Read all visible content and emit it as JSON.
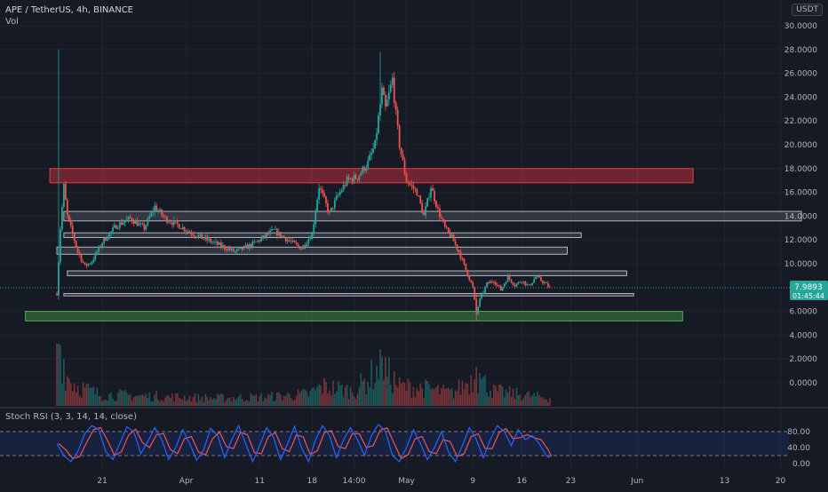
{
  "header": {
    "title": "APE / TetherUS, 4h, BINANCE",
    "volume_label": "Vol",
    "currency": "USDT"
  },
  "indicator": {
    "label": "Stoch RSI (3, 3, 14, 14, close)",
    "ticks": [
      "80.00",
      "40.00",
      "0.00"
    ]
  },
  "price_badge": {
    "value": "7.9893",
    "countdown": "01:45:44"
  },
  "price_axis": {
    "ticks": [
      {
        "v": 30,
        "label": "30.0000"
      },
      {
        "v": 28,
        "label": "28.0000"
      },
      {
        "v": 26,
        "label": "26.0000"
      },
      {
        "v": 24,
        "label": "24.0000"
      },
      {
        "v": 22,
        "label": "22.0000"
      },
      {
        "v": 20,
        "label": "20.0000"
      },
      {
        "v": 18,
        "label": "18.0000"
      },
      {
        "v": 16,
        "label": "16.0000"
      },
      {
        "v": 14,
        "label": "14.0000"
      },
      {
        "v": 12,
        "label": "12.0000"
      },
      {
        "v": 10,
        "label": "10.0000"
      },
      {
        "v": 6,
        "label": "6.0000"
      },
      {
        "v": 4,
        "label": "4.0000"
      },
      {
        "v": 2,
        "label": "2.0000"
      },
      {
        "v": 0,
        "label": "0.0000"
      }
    ]
  },
  "time_axis": {
    "ticks": [
      {
        "t": 13,
        "label": "21"
      },
      {
        "t": 37,
        "label": "Apr"
      },
      {
        "t": 58,
        "label": "11"
      },
      {
        "t": 73,
        "label": "18"
      },
      {
        "t": 85,
        "label": "14:00"
      },
      {
        "t": 100,
        "label": "May"
      },
      {
        "t": 119,
        "label": "9"
      },
      {
        "t": 133,
        "label": "16"
      },
      {
        "t": 147,
        "label": "23"
      },
      {
        "t": 166,
        "label": "Jun"
      },
      {
        "t": 191,
        "label": "13"
      },
      {
        "t": 207,
        "label": "20"
      }
    ]
  },
  "colors": {
    "up": "#26a69a",
    "down": "#ef5350",
    "stoch_k": "#2962ff",
    "stoch_d": "#ef5350",
    "red_zone": "#f23645",
    "green_zone": "#4caf50",
    "gray_zone": "#b2b5be"
  },
  "chart_data": {
    "type": "candlestick",
    "symbol": "APE / TetherUS",
    "interval": "4h",
    "exchange": "BINANCE",
    "y_range": [
      0,
      30
    ],
    "last_price": 7.9893,
    "zones": [
      {
        "kind": "resistance",
        "color": "red",
        "t1": -2,
        "t2": 182,
        "top": 18.0,
        "bottom": 16.8
      },
      {
        "kind": "level",
        "color": "gray",
        "t1": 2,
        "t2": 213,
        "top": 14.4,
        "bottom": 13.6
      },
      {
        "kind": "level",
        "color": "gray",
        "t1": 2,
        "t2": 150,
        "top": 12.6,
        "bottom": 12.2
      },
      {
        "kind": "level",
        "color": "gray",
        "t1": 0,
        "t2": 146,
        "top": 11.4,
        "bottom": 10.8
      },
      {
        "kind": "level",
        "color": "gray",
        "t1": 3,
        "t2": 163,
        "top": 9.4,
        "bottom": 9.0
      },
      {
        "kind": "level",
        "color": "gray",
        "t1": 2,
        "t2": 165,
        "top": 7.5,
        "bottom": 7.3
      },
      {
        "kind": "support",
        "color": "green",
        "t1": -9,
        "t2": 179,
        "top": 6.0,
        "bottom": 5.2
      }
    ],
    "price_path": [
      {
        "t": 0,
        "p": 7.5
      },
      {
        "t": 1,
        "p": 13.0
      },
      {
        "t": 2,
        "p": 16.5
      },
      {
        "t": 3,
        "p": 14.0
      },
      {
        "t": 4,
        "p": 13.0
      },
      {
        "t": 6,
        "p": 11.0
      },
      {
        "t": 8,
        "p": 9.8
      },
      {
        "t": 10,
        "p": 10.2
      },
      {
        "t": 13,
        "p": 11.8
      },
      {
        "t": 17,
        "p": 13.2
      },
      {
        "t": 21,
        "p": 13.8
      },
      {
        "t": 25,
        "p": 13.0
      },
      {
        "t": 28,
        "p": 14.8
      },
      {
        "t": 31,
        "p": 13.8
      },
      {
        "t": 35,
        "p": 13.2
      },
      {
        "t": 39,
        "p": 12.5
      },
      {
        "t": 43,
        "p": 12.0
      },
      {
        "t": 47,
        "p": 11.5
      },
      {
        "t": 51,
        "p": 11.0
      },
      {
        "t": 55,
        "p": 11.5
      },
      {
        "t": 58,
        "p": 12.0
      },
      {
        "t": 62,
        "p": 12.8
      },
      {
        "t": 66,
        "p": 12.0
      },
      {
        "t": 70,
        "p": 11.3
      },
      {
        "t": 73,
        "p": 12.5
      },
      {
        "t": 75,
        "p": 16.5
      },
      {
        "t": 78,
        "p": 14.2
      },
      {
        "t": 80,
        "p": 15.5
      },
      {
        "t": 83,
        "p": 17.0
      },
      {
        "t": 86,
        "p": 17.3
      },
      {
        "t": 89,
        "p": 18.5
      },
      {
        "t": 91,
        "p": 20.0
      },
      {
        "t": 93,
        "p": 24.5
      },
      {
        "t": 94,
        "p": 23.0
      },
      {
        "t": 96,
        "p": 25.5
      },
      {
        "t": 97,
        "p": 22.5
      },
      {
        "t": 98,
        "p": 20.0
      },
      {
        "t": 100,
        "p": 17.0
      },
      {
        "t": 103,
        "p": 16.0
      },
      {
        "t": 105,
        "p": 14.0
      },
      {
        "t": 107,
        "p": 16.5
      },
      {
        "t": 109,
        "p": 14.5
      },
      {
        "t": 111,
        "p": 13.0
      },
      {
        "t": 113,
        "p": 12.2
      },
      {
        "t": 115,
        "p": 11.0
      },
      {
        "t": 117,
        "p": 9.5
      },
      {
        "t": 119,
        "p": 8.0
      },
      {
        "t": 120,
        "p": 5.8
      },
      {
        "t": 121,
        "p": 7.0
      },
      {
        "t": 123,
        "p": 8.3
      },
      {
        "t": 125,
        "p": 8.6
      },
      {
        "t": 127,
        "p": 7.8
      },
      {
        "t": 129,
        "p": 8.9
      },
      {
        "t": 131,
        "p": 8.2
      },
      {
        "t": 133,
        "p": 8.6
      },
      {
        "t": 135,
        "p": 8.1
      },
      {
        "t": 137,
        "p": 8.9
      },
      {
        "t": 139,
        "p": 8.5
      },
      {
        "t": 141,
        "p": 7.99
      }
    ],
    "wick_spikes": [
      {
        "t": 0.5,
        "high": 28.0,
        "low": 7.0
      },
      {
        "t": 92.5,
        "high": 27.8,
        "low": 22.0
      },
      {
        "t": 120,
        "high": 7.5,
        "low": 5.2
      }
    ],
    "volume_path": [
      {
        "t": 0,
        "v": 18
      },
      {
        "t": 1,
        "v": 6
      },
      {
        "t": 3,
        "v": 3
      },
      {
        "t": 6,
        "v": 2
      },
      {
        "t": 12,
        "v": 1.2
      },
      {
        "t": 25,
        "v": 1.0
      },
      {
        "t": 45,
        "v": 0.8
      },
      {
        "t": 60,
        "v": 0.9
      },
      {
        "t": 72,
        "v": 1.2
      },
      {
        "t": 76,
        "v": 2.0
      },
      {
        "t": 85,
        "v": 1.5
      },
      {
        "t": 93,
        "v": 4.0
      },
      {
        "t": 98,
        "v": 2.0
      },
      {
        "t": 105,
        "v": 1.8
      },
      {
        "t": 113,
        "v": 1.3
      },
      {
        "t": 120,
        "v": 3.0
      },
      {
        "t": 125,
        "v": 1.5
      },
      {
        "t": 141,
        "v": 0.8
      }
    ],
    "volume_spikes": [
      {
        "t": 0.5,
        "v": 20
      },
      {
        "t": 93,
        "v": 4.8
      },
      {
        "t": 120,
        "v": 3.8
      },
      {
        "t": 121,
        "v": 3.2
      }
    ],
    "stoch_rsi": {
      "upper": 80,
      "lower": 20,
      "k_path": [
        {
          "t": 0,
          "v": 50
        },
        {
          "t": 2,
          "v": 20
        },
        {
          "t": 4,
          "v": 5
        },
        {
          "t": 6,
          "v": 30
        },
        {
          "t": 8,
          "v": 75
        },
        {
          "t": 10,
          "v": 95
        },
        {
          "t": 12,
          "v": 85
        },
        {
          "t": 14,
          "v": 30
        },
        {
          "t": 16,
          "v": 10
        },
        {
          "t": 18,
          "v": 50
        },
        {
          "t": 20,
          "v": 92
        },
        {
          "t": 22,
          "v": 80
        },
        {
          "t": 24,
          "v": 25
        },
        {
          "t": 26,
          "v": 55
        },
        {
          "t": 28,
          "v": 90
        },
        {
          "t": 30,
          "v": 60
        },
        {
          "t": 32,
          "v": 10
        },
        {
          "t": 34,
          "v": 40
        },
        {
          "t": 36,
          "v": 85
        },
        {
          "t": 38,
          "v": 50
        },
        {
          "t": 40,
          "v": 8
        },
        {
          "t": 42,
          "v": 35
        },
        {
          "t": 44,
          "v": 88
        },
        {
          "t": 46,
          "v": 70
        },
        {
          "t": 48,
          "v": 15
        },
        {
          "t": 50,
          "v": 60
        },
        {
          "t": 52,
          "v": 95
        },
        {
          "t": 54,
          "v": 50
        },
        {
          "t": 56,
          "v": 5
        },
        {
          "t": 58,
          "v": 45
        },
        {
          "t": 60,
          "v": 90
        },
        {
          "t": 62,
          "v": 65
        },
        {
          "t": 64,
          "v": 10
        },
        {
          "t": 66,
          "v": 50
        },
        {
          "t": 68,
          "v": 93
        },
        {
          "t": 70,
          "v": 40
        },
        {
          "t": 72,
          "v": 5
        },
        {
          "t": 74,
          "v": 60
        },
        {
          "t": 76,
          "v": 95
        },
        {
          "t": 78,
          "v": 70
        },
        {
          "t": 80,
          "v": 15
        },
        {
          "t": 82,
          "v": 60
        },
        {
          "t": 84,
          "v": 90
        },
        {
          "t": 86,
          "v": 60
        },
        {
          "t": 88,
          "v": 20
        },
        {
          "t": 90,
          "v": 70
        },
        {
          "t": 92,
          "v": 98
        },
        {
          "t": 94,
          "v": 80
        },
        {
          "t": 96,
          "v": 20
        },
        {
          "t": 98,
          "v": 5
        },
        {
          "t": 100,
          "v": 40
        },
        {
          "t": 102,
          "v": 85
        },
        {
          "t": 104,
          "v": 50
        },
        {
          "t": 106,
          "v": 10
        },
        {
          "t": 108,
          "v": 40
        },
        {
          "t": 110,
          "v": 80
        },
        {
          "t": 112,
          "v": 30
        },
        {
          "t": 114,
          "v": 5
        },
        {
          "t": 116,
          "v": 45
        },
        {
          "t": 118,
          "v": 90
        },
        {
          "t": 120,
          "v": 60
        },
        {
          "t": 122,
          "v": 15
        },
        {
          "t": 124,
          "v": 60
        },
        {
          "t": 126,
          "v": 95
        },
        {
          "t": 128,
          "v": 80
        },
        {
          "t": 130,
          "v": 45
        },
        {
          "t": 132,
          "v": 85
        },
        {
          "t": 134,
          "v": 60
        },
        {
          "t": 136,
          "v": 70
        },
        {
          "t": 138,
          "v": 50
        },
        {
          "t": 140,
          "v": 20
        },
        {
          "t": 141,
          "v": 15
        }
      ]
    }
  }
}
